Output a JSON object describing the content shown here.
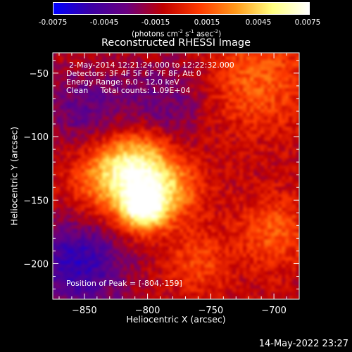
{
  "colorbar": {
    "ticks": [
      "-0.0075",
      "-0.0045",
      "-0.0015",
      "0.0015",
      "0.0045",
      "0.0075"
    ],
    "units_prefix": "(photons cm",
    "units_sup1": "-2",
    "units_mid1": " s",
    "units_sup2": "-1",
    "units_mid2": " asec",
    "units_sup3": "-2",
    "units_suffix": ")"
  },
  "chart_data": {
    "type": "heatmap",
    "title": "Reconstructed RHESSI Image",
    "xlabel": "Heliocentric X (arcsec)",
    "ylabel": "Heliocentric Y (arcsec)",
    "xlim": [
      -875,
      -680
    ],
    "ylim": [
      -228,
      -34
    ],
    "x_ticks": [
      -850,
      -800,
      -750,
      -700
    ],
    "y_ticks": [
      -50,
      -100,
      -150,
      -200
    ],
    "x_tick_labels": [
      "−850",
      "−800",
      "−750",
      "−700"
    ],
    "y_tick_labels": [
      "−50",
      "−100",
      "−150",
      "−200"
    ],
    "color_range": [
      -0.0075,
      0.0075
    ],
    "colormap": [
      "#0000ff",
      "#3a00a6",
      "#6a0080",
      "#c00000",
      "#ff3a00",
      "#ff9a1a",
      "#ffff80",
      "#ffffff"
    ],
    "sources": [
      {
        "x": -803,
        "y": -157,
        "peak": 0.0075,
        "sigma": 12
      },
      {
        "x": -808,
        "y": -124,
        "peak": 0.0058,
        "sigma": 20
      },
      {
        "x": -830,
        "y": -135,
        "peak": 0.0038,
        "sigma": 22
      },
      {
        "x": -782,
        "y": -142,
        "peak": 0.0035,
        "sigma": 18
      },
      {
        "x": -712,
        "y": -55,
        "peak": 0.003,
        "sigma": 28
      },
      {
        "x": -700,
        "y": -175,
        "peak": 0.0028,
        "sigma": 20
      },
      {
        "x": -760,
        "y": -200,
        "peak": 0.0022,
        "sigma": 18
      },
      {
        "x": -855,
        "y": -200,
        "peak": -0.0045,
        "sigma": 25
      },
      {
        "x": -850,
        "y": -80,
        "peak": -0.0025,
        "sigma": 22
      },
      {
        "x": -790,
        "y": -75,
        "peak": -0.0022,
        "sigma": 25
      }
    ],
    "annotations": {
      "date": "2-May-2014 12:21:24.000 to 12:22:32.000",
      "detectors": "Detectors: 3F 4F 5F 6F 7F 8F, Att 0",
      "energy": "Energy Range: 6.0 - 12.0 keV",
      "clean": "Clean     Total counts: 1.09E+04",
      "peak": "Position of Peak = [-804,-159]"
    }
  },
  "timestamp": "14-May-2022 23:27"
}
